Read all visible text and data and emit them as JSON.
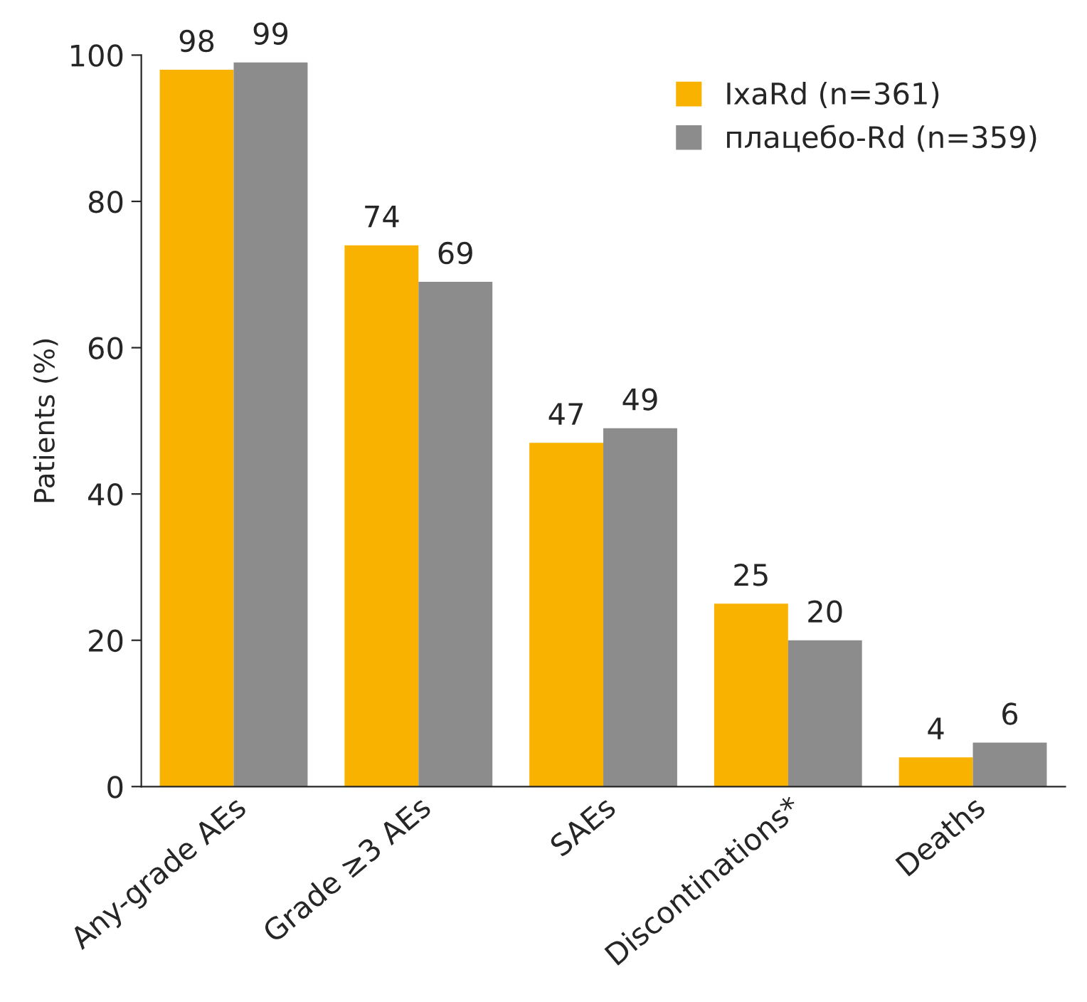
{
  "chart_data": {
    "type": "bar",
    "ylabel": "Patients (%)",
    "categories": [
      "Any-grade AEs",
      "Grade ≥3 AEs",
      "SAEs",
      "Discontinations*",
      "Deaths"
    ],
    "series": [
      {
        "name": "IxaRd (n=361)",
        "color": "#f9b200",
        "values": [
          98,
          74,
          47,
          25,
          4
        ]
      },
      {
        "name": "плацебо-Rd (n=359)",
        "color": "#8c8c8c",
        "values": [
          99,
          69,
          49,
          20,
          6
        ]
      }
    ],
    "ylim": [
      0,
      100
    ],
    "yticks": [
      0,
      20,
      40,
      60,
      80,
      100
    ],
    "grid": false,
    "legend": "top right",
    "data_labels": true
  }
}
